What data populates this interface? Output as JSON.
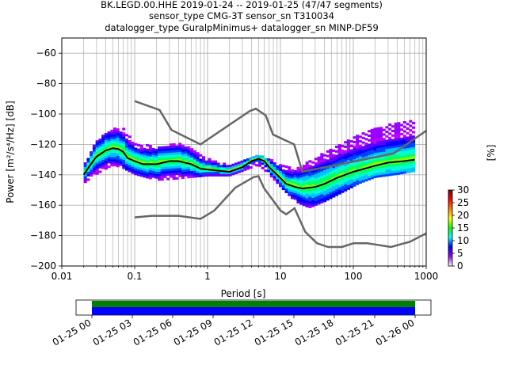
{
  "title_lines": [
    "BK.LEGD.00.HHE   2019-01-24 -- 2019-01-25  (47/47 segments)",
    "sensor_type CMG-3T sensor_sn T310034",
    "datalogger_type GuralpMinimus+ datalogger_sn MINP-DF59"
  ],
  "chart_data": {
    "type": "heatmap",
    "xlabel": "Period [s]",
    "ylabel": "Power [m²/s⁴/Hz] [dB]",
    "xscale": "log",
    "xlim": [
      0.01,
      1000
    ],
    "ylim": [
      -200,
      -50
    ],
    "x_ticks": [
      {
        "v": 0.01,
        "label": "0.01"
      },
      {
        "v": 0.1,
        "label": "0.1"
      },
      {
        "v": 1,
        "label": "1"
      },
      {
        "v": 10,
        "label": "10"
      },
      {
        "v": 100,
        "label": "100"
      },
      {
        "v": 1000,
        "label": "1000"
      }
    ],
    "y_ticks": [
      {
        "v": -60,
        "label": "−60"
      },
      {
        "v": -80,
        "label": "−80"
      },
      {
        "v": -100,
        "label": "−100"
      },
      {
        "v": -120,
        "label": "−120"
      },
      {
        "v": -140,
        "label": "−140"
      },
      {
        "v": -160,
        "label": "−160"
      },
      {
        "v": -180,
        "label": "−180"
      },
      {
        "v": -200,
        "label": "−200"
      }
    ],
    "grid": true,
    "colorbar": {
      "label": "[%]",
      "min": 0,
      "max": 30,
      "ticks": [
        "0",
        "5",
        "10",
        "15",
        "20",
        "25",
        "30"
      ],
      "colors": [
        "#ffffff",
        "#a000ff",
        "#0000ff",
        "#00ffff",
        "#00ff00",
        "#ffff00",
        "#ff8000",
        "#ff0000",
        "#800000"
      ]
    },
    "series": [
      {
        "role": "high-noise-model",
        "color": "#666666",
        "points": [
          [
            0.1,
            -91.5
          ],
          [
            0.22,
            -97.4
          ],
          [
            0.32,
            -110.5
          ],
          [
            0.8,
            -120
          ],
          [
            3.8,
            -98
          ],
          [
            4.6,
            -96.5
          ],
          [
            6.3,
            -101
          ],
          [
            7.9,
            -113.5
          ],
          [
            15.4,
            -120
          ],
          [
            20,
            -138
          ],
          [
            354.8,
            -126
          ],
          [
            1000,
            -111
          ]
        ]
      },
      {
        "role": "low-noise-model",
        "color": "#666666",
        "points": [
          [
            0.1,
            -168
          ],
          [
            0.17,
            -167
          ],
          [
            0.4,
            -167
          ],
          [
            0.8,
            -169
          ],
          [
            1.24,
            -163.5
          ],
          [
            2.4,
            -148.5
          ],
          [
            4.3,
            -141.5
          ],
          [
            5,
            -141
          ],
          [
            6,
            -149
          ],
          [
            10,
            -163.5
          ],
          [
            12,
            -166
          ],
          [
            15.6,
            -162
          ],
          [
            21.9,
            -177.5
          ],
          [
            31.6,
            -185
          ],
          [
            45,
            -187.5
          ],
          [
            70,
            -187.5
          ],
          [
            101,
            -185
          ],
          [
            154,
            -185
          ],
          [
            328,
            -187.5
          ],
          [
            600,
            -184
          ],
          [
            1000,
            -178.5
          ]
        ]
      },
      {
        "role": "mode",
        "color": "#000000",
        "points": [
          [
            0.02,
            -140
          ],
          [
            0.025,
            -133
          ],
          [
            0.03,
            -128
          ],
          [
            0.04,
            -124
          ],
          [
            0.05,
            -122.5
          ],
          [
            0.06,
            -123
          ],
          [
            0.07,
            -125
          ],
          [
            0.08,
            -129
          ],
          [
            0.1,
            -131
          ],
          [
            0.13,
            -133
          ],
          [
            0.2,
            -133
          ],
          [
            0.3,
            -131
          ],
          [
            0.4,
            -131
          ],
          [
            0.6,
            -133
          ],
          [
            0.8,
            -136
          ],
          [
            1.2,
            -137
          ],
          [
            2,
            -138
          ],
          [
            3,
            -135
          ],
          [
            4,
            -131
          ],
          [
            5,
            -129.5
          ],
          [
            6,
            -131
          ],
          [
            7,
            -135
          ],
          [
            9,
            -140
          ],
          [
            12,
            -146
          ],
          [
            16,
            -148
          ],
          [
            20,
            -149
          ],
          [
            30,
            -148
          ],
          [
            40,
            -146
          ],
          [
            60,
            -142
          ],
          [
            100,
            -138
          ],
          [
            200,
            -134
          ],
          [
            300,
            -132
          ],
          [
            500,
            -131
          ],
          [
            700,
            -130
          ]
        ]
      }
    ],
    "density_bands": [
      {
        "note": "upper envelope",
        "upper": [
          [
            0.02,
            -135
          ],
          [
            0.03,
            -118
          ],
          [
            0.05,
            -110
          ],
          [
            0.07,
            -110
          ],
          [
            0.1,
            -120
          ],
          [
            0.2,
            -122
          ],
          [
            0.4,
            -120
          ],
          [
            0.6,
            -123
          ],
          [
            1,
            -130
          ],
          [
            2,
            -134
          ],
          [
            3,
            -131
          ],
          [
            5,
            -128
          ],
          [
            7,
            -130
          ],
          [
            10,
            -134
          ],
          [
            16,
            -136
          ],
          [
            25,
            -132
          ],
          [
            40,
            -126
          ],
          [
            70,
            -120
          ],
          [
            120,
            -114
          ],
          [
            200,
            -110
          ],
          [
            400,
            -106
          ],
          [
            700,
            -104
          ]
        ],
        "lower": [
          [
            0.02,
            -146
          ],
          [
            0.03,
            -140
          ],
          [
            0.05,
            -134
          ],
          [
            0.07,
            -136
          ],
          [
            0.1,
            -140
          ],
          [
            0.2,
            -144
          ],
          [
            0.4,
            -143
          ],
          [
            0.6,
            -142
          ],
          [
            1,
            -141
          ],
          [
            2,
            -141
          ],
          [
            3,
            -138
          ],
          [
            5,
            -134
          ],
          [
            7,
            -140
          ],
          [
            10,
            -148
          ],
          [
            16,
            -158
          ],
          [
            25,
            -162
          ],
          [
            40,
            -158
          ],
          [
            70,
            -152
          ],
          [
            120,
            -146
          ],
          [
            200,
            -142
          ],
          [
            400,
            -140
          ],
          [
            700,
            -138
          ]
        ]
      }
    ]
  },
  "timeline": {
    "tick_labels": [
      "01-25 00",
      "01-25 03",
      "01-25 06",
      "01-25 09",
      "01-25 12",
      "01-25 15",
      "01-25 18",
      "01-25 21",
      "01-26 00"
    ],
    "bar_colors": {
      "top": "#008000",
      "bottom": "#0000ff"
    }
  }
}
